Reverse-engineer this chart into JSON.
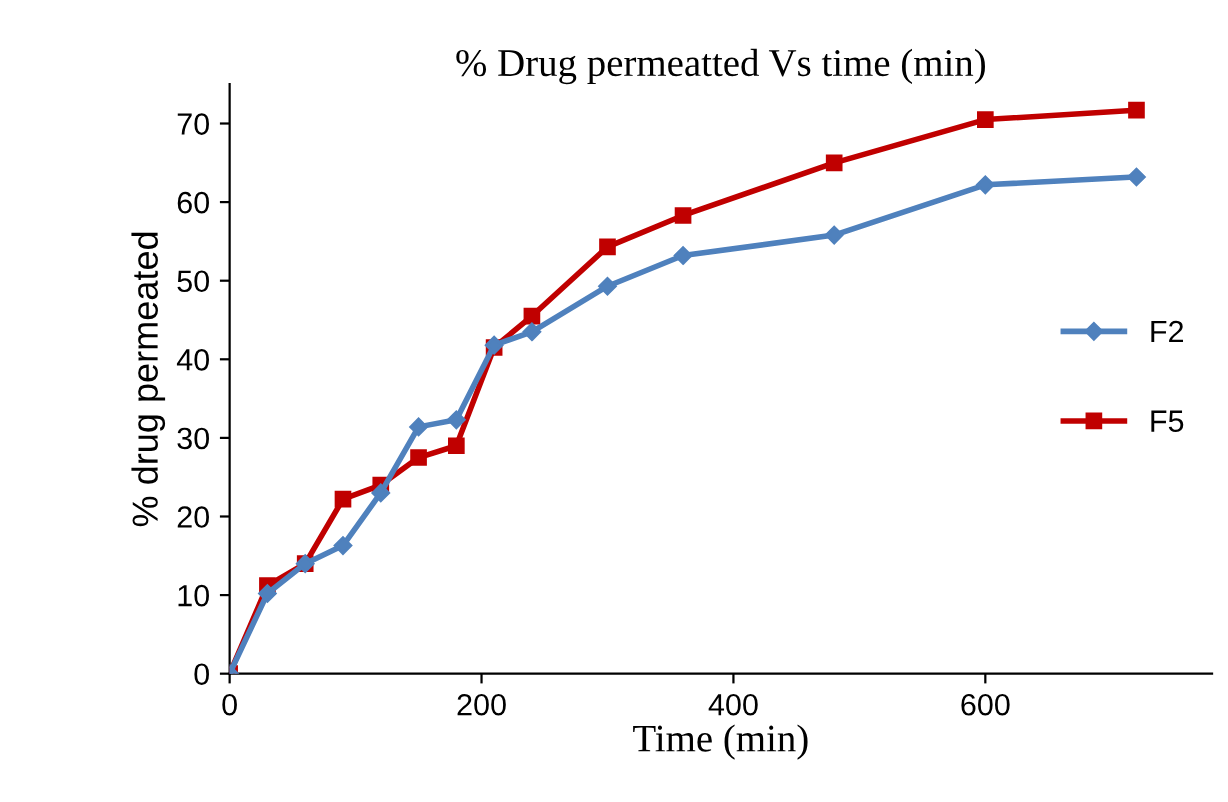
{
  "chart_data": {
    "type": "line",
    "title": "% Drug permeatted Vs time (min)",
    "xlabel": "Time (min)",
    "ylabel": "% drug permeated",
    "x": [
      0,
      30,
      60,
      90,
      120,
      150,
      180,
      210,
      240,
      300,
      360,
      480,
      600,
      720
    ],
    "series": [
      {
        "name": "F2",
        "color": "#4f81bd",
        "marker": "diamond",
        "values": [
          0,
          10.2,
          14,
          16.3,
          23,
          31.4,
          32.3,
          41.8,
          43.5,
          49.3,
          53.2,
          55.8,
          62.2,
          63.2
        ]
      },
      {
        "name": "F5",
        "color": "#c00000",
        "marker": "square",
        "values": [
          0,
          11.2,
          14,
          22.2,
          24,
          27.5,
          29,
          41.5,
          45.5,
          54.3,
          58.3,
          65,
          70.5,
          71.7
        ]
      }
    ],
    "xlim": [
      0,
      780
    ],
    "xticks": [
      0,
      200,
      400,
      600
    ],
    "ylim": [
      0,
      75
    ],
    "yticks": [
      0,
      10,
      20,
      30,
      40,
      50,
      60,
      70
    ],
    "grid": false,
    "legend": "right",
    "line_style": "solid"
  }
}
